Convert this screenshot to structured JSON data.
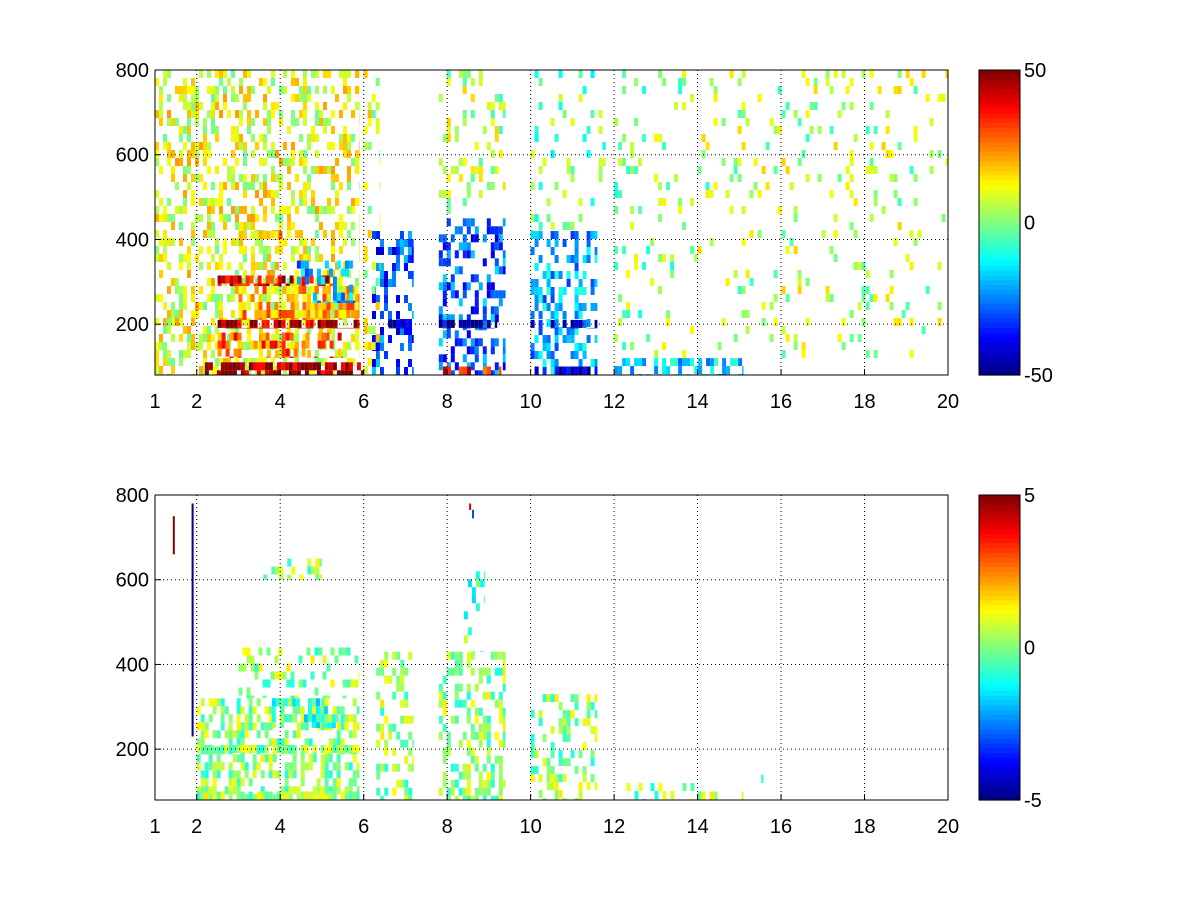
{
  "chart_data": [
    {
      "type": "heatmap",
      "title": "",
      "xlabel": "",
      "ylabel": "",
      "xlim": [
        1,
        20
      ],
      "ylim": [
        80,
        800
      ],
      "x_ticks": [
        1,
        2,
        4,
        6,
        8,
        10,
        12,
        14,
        16,
        18,
        20
      ],
      "y_ticks": [
        200,
        400,
        600,
        800
      ],
      "grid": true,
      "colormap": "jet",
      "clim": [
        -50,
        50
      ],
      "colorbar_ticks": [
        -50,
        0,
        50
      ],
      "colorbar_labels": [
        "50",
        "0",
        "-50"
      ],
      "x_tick_labels": [
        "1",
        "2",
        "4",
        "6",
        "8",
        "10",
        "12",
        "14",
        "16",
        "18",
        "20"
      ],
      "y_tick_labels": [
        "800",
        "600",
        "400",
        "200"
      ],
      "regions": [
        {
          "x": [
            1.0,
            5.9
          ],
          "y": [
            80,
            800
          ],
          "value": 10,
          "density": 0.42
        },
        {
          "x": [
            2.1,
            6.0
          ],
          "y": [
            80,
            110
          ],
          "value": 48,
          "density": 0.7
        },
        {
          "x": [
            2.5,
            5.9
          ],
          "y": [
            190,
            210
          ],
          "value": 45,
          "density": 0.75
        },
        {
          "x": [
            2.5,
            5.3
          ],
          "y": [
            290,
            315
          ],
          "value": 40,
          "density": 0.6
        },
        {
          "x": [
            2.5,
            5.5
          ],
          "y": [
            120,
            180
          ],
          "value": 28,
          "density": 0.45
        },
        {
          "x": [
            3.0,
            5.9
          ],
          "y": [
            210,
            290
          ],
          "value": 20,
          "density": 0.55
        },
        {
          "x": [
            3.0,
            4.5
          ],
          "y": [
            400,
            420
          ],
          "value": 18,
          "density": 0.5
        },
        {
          "x": [
            4.4,
            5.8
          ],
          "y": [
            250,
            350
          ],
          "value": -22,
          "density": 0.25
        },
        {
          "x": [
            6.2,
            7.2
          ],
          "y": [
            80,
            420
          ],
          "value": -30,
          "density": 0.4
        },
        {
          "x": [
            6.6,
            7.0
          ],
          "y": [
            190,
            210
          ],
          "value": -48,
          "density": 0.8
        },
        {
          "x": [
            6.0,
            6.4
          ],
          "y": [
            80,
            800
          ],
          "value": 8,
          "density": 0.18
        },
        {
          "x": [
            7.8,
            9.4
          ],
          "y": [
            80,
            450
          ],
          "value": -28,
          "density": 0.45
        },
        {
          "x": [
            7.8,
            9.2
          ],
          "y": [
            190,
            210
          ],
          "value": -45,
          "density": 0.75
        },
        {
          "x": [
            7.9,
            9.3
          ],
          "y": [
            80,
            100
          ],
          "value": 35,
          "density": 0.5
        },
        {
          "x": [
            7.8,
            9.4
          ],
          "y": [
            450,
            800
          ],
          "value": 5,
          "density": 0.18
        },
        {
          "x": [
            10.0,
            11.6
          ],
          "y": [
            80,
            420
          ],
          "value": -20,
          "density": 0.4
        },
        {
          "x": [
            10.0,
            11.6
          ],
          "y": [
            80,
            100
          ],
          "value": -45,
          "density": 0.6
        },
        {
          "x": [
            10.0,
            11.6
          ],
          "y": [
            190,
            210
          ],
          "value": -35,
          "density": 0.55
        },
        {
          "x": [
            10.0,
            11.8
          ],
          "y": [
            420,
            800
          ],
          "value": -2,
          "density": 0.12
        },
        {
          "x": [
            12.0,
            15.1
          ],
          "y": [
            80,
            120
          ],
          "value": -18,
          "density": 0.5
        },
        {
          "x": [
            12.0,
            14.0
          ],
          "y": [
            120,
            800
          ],
          "value": 2,
          "density": 0.1
        },
        {
          "x": [
            14.0,
            20.0
          ],
          "y": [
            120,
            800
          ],
          "value": 5,
          "density": 0.1
        }
      ]
    },
    {
      "type": "heatmap",
      "title": "",
      "xlabel": "",
      "ylabel": "",
      "xlim": [
        1,
        20
      ],
      "ylim": [
        80,
        800
      ],
      "x_ticks": [
        1,
        2,
        4,
        6,
        8,
        10,
        12,
        14,
        16,
        18,
        20
      ],
      "y_ticks": [
        200,
        400,
        600,
        800
      ],
      "grid": true,
      "colormap": "jet",
      "clim": [
        -5,
        5
      ],
      "colorbar_ticks": [
        -5,
        0,
        5
      ],
      "colorbar_labels": [
        "5",
        "0",
        "-5"
      ],
      "x_tick_labels": [
        "1",
        "2",
        "4",
        "6",
        "8",
        "10",
        "12",
        "14",
        "16",
        "18",
        "20"
      ],
      "y_tick_labels": [
        "800",
        "600",
        "400",
        "200"
      ],
      "regions": [
        {
          "x": [
            2.0,
            5.9
          ],
          "y": [
            80,
            320
          ],
          "value": 0.2,
          "density": 0.5
        },
        {
          "x": [
            2.0,
            5.9
          ],
          "y": [
            190,
            210
          ],
          "value": 0.1,
          "density": 0.75
        },
        {
          "x": [
            2.0,
            5.9
          ],
          "y": [
            80,
            100
          ],
          "value": 0.3,
          "density": 0.75
        },
        {
          "x": [
            3.8,
            5.4
          ],
          "y": [
            250,
            320
          ],
          "value": -0.7,
          "density": 0.45
        },
        {
          "x": [
            3.0,
            5.9
          ],
          "y": [
            320,
            440
          ],
          "value": 0.3,
          "density": 0.25
        },
        {
          "x": [
            3.5,
            5.0
          ],
          "y": [
            600,
            650
          ],
          "value": 0.2,
          "density": 0.3
        },
        {
          "x": [
            6.3,
            7.2
          ],
          "y": [
            80,
            430
          ],
          "value": 0.3,
          "density": 0.35
        },
        {
          "x": [
            7.8,
            9.4
          ],
          "y": [
            80,
            430
          ],
          "value": 0.2,
          "density": 0.45
        },
        {
          "x": [
            8.4,
            8.9
          ],
          "y": [
            430,
            620
          ],
          "value": -0.5,
          "density": 0.25
        },
        {
          "x": [
            10.0,
            11.6
          ],
          "y": [
            80,
            330
          ],
          "value": 0.2,
          "density": 0.35
        },
        {
          "x": [
            12.2,
            14.0
          ],
          "y": [
            80,
            120
          ],
          "value": 0.2,
          "density": 0.3
        },
        {
          "x": [
            14.0,
            15.1
          ],
          "y": [
            80,
            100
          ],
          "value": 0.3,
          "density": 0.4
        }
      ],
      "points": [
        {
          "x": 1.45,
          "y": [
            660,
            750
          ],
          "value": 5
        },
        {
          "x": 1.9,
          "y": [
            230,
            780
          ],
          "value": -5
        },
        {
          "x": 8.55,
          "y": [
            765,
            780
          ],
          "value": 4
        },
        {
          "x": 8.62,
          "y": [
            745,
            765
          ],
          "value": -3
        },
        {
          "x": 15.55,
          "y": [
            120,
            140
          ],
          "value": -1
        }
      ]
    }
  ]
}
